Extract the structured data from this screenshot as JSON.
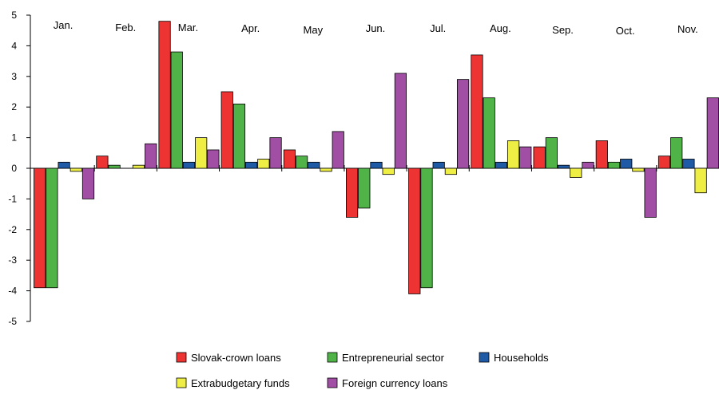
{
  "chart_data": {
    "type": "bar",
    "categories": [
      "Jan.",
      "Feb.",
      "Mar.",
      "Apr.",
      "May",
      "Jun.",
      "Jul.",
      "Aug.",
      "Sep.",
      "Oct.",
      "Nov."
    ],
    "series": [
      {
        "name": "Slovak-crown loans",
        "color": "#ee3333",
        "values": [
          -3.9,
          0.4,
          4.8,
          2.5,
          0.6,
          -1.6,
          -4.1,
          3.7,
          0.7,
          0.9,
          0.4
        ]
      },
      {
        "name": "Entrepreneurial sector",
        "color": "#4fb348",
        "values": [
          -3.9,
          0.1,
          3.8,
          2.1,
          0.4,
          -1.3,
          -3.9,
          2.3,
          1.0,
          0.2,
          1.0
        ]
      },
      {
        "name": "Households",
        "color": "#1f5aa6",
        "values": [
          0.2,
          0.0,
          0.2,
          0.2,
          0.2,
          0.2,
          0.2,
          0.2,
          0.1,
          0.3,
          0.3
        ]
      },
      {
        "name": "Extrabudgetary funds",
        "color": "#eeee44",
        "values": [
          -0.1,
          0.1,
          1.0,
          0.3,
          -0.1,
          -0.2,
          -0.2,
          0.9,
          -0.3,
          -0.1,
          -0.8
        ]
      },
      {
        "name": "Foreign currency loans",
        "color": "#a04fa4",
        "values": [
          -1.0,
          0.8,
          0.6,
          1.0,
          1.2,
          3.1,
          2.9,
          0.7,
          0.2,
          -1.6,
          2.3
        ]
      }
    ],
    "ylim": [
      -5,
      5
    ],
    "yticks": [
      5,
      4,
      3,
      2,
      1,
      0,
      -1,
      -2,
      -3,
      -4,
      -5
    ],
    "grid": false,
    "legend_position": "bottom"
  }
}
